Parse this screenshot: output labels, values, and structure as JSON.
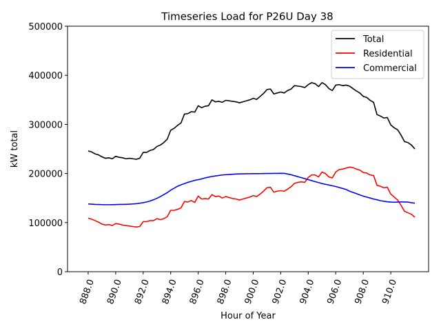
{
  "chart_data": {
    "type": "line",
    "title": "Timeseries Load for P26U   Day 38",
    "xlabel": "Hour of Year",
    "ylabel": "kW total",
    "xlim": [
      886.5,
      912.75
    ],
    "ylim": [
      0,
      500000
    ],
    "x_ticks": [
      888,
      890,
      892,
      894,
      896,
      898,
      900,
      902,
      904,
      906,
      908,
      910
    ],
    "x_tick_labels": [
      "888.0",
      "890.0",
      "892.0",
      "894.0",
      "896.0",
      "898.0",
      "900.0",
      "902.0",
      "904.0",
      "906.0",
      "908.0",
      "910.0"
    ],
    "y_ticks": [
      0,
      100000,
      200000,
      300000,
      400000,
      500000
    ],
    "y_tick_labels": [
      "0",
      "100000",
      "200000",
      "300000",
      "400000",
      "500000"
    ],
    "legend_position": "top-right",
    "x_start": 888,
    "x_step": 0.25,
    "series": [
      {
        "name": "Total",
        "color": "#000000",
        "values": [
          246000,
          244000,
          240000,
          238000,
          234000,
          231000,
          232000,
          230000,
          235000,
          233000,
          232000,
          230000,
          231000,
          230000,
          229000,
          231000,
          243000,
          243000,
          247000,
          249000,
          255000,
          258000,
          263000,
          270000,
          288000,
          292000,
          298000,
          303000,
          321000,
          322000,
          326000,
          325000,
          338000,
          334000,
          337000,
          338000,
          350000,
          346000,
          347000,
          345000,
          349000,
          348000,
          347000,
          346000,
          344000,
          346000,
          348000,
          350000,
          353000,
          351000,
          357000,
          363000,
          371000,
          372000,
          362000,
          364000,
          366000,
          364000,
          369000,
          372000,
          379000,
          378000,
          377000,
          375000,
          381000,
          385000,
          383000,
          377000,
          385000,
          381000,
          373000,
          369000,
          380000,
          381000,
          379000,
          380000,
          378000,
          373000,
          368000,
          364000,
          357000,
          355000,
          349000,
          345000,
          320000,
          317000,
          313000,
          314000,
          299000,
          293000,
          289000,
          278000,
          265000,
          263000,
          258000,
          250000
        ]
      },
      {
        "name": "Residential",
        "color": "#ff0000",
        "values": [
          109000,
          107000,
          104000,
          101000,
          97000,
          95000,
          96000,
          94000,
          98000,
          97000,
          95000,
          94000,
          93000,
          92000,
          91000,
          92000,
          102000,
          102000,
          104000,
          104000,
          108000,
          106000,
          108000,
          112000,
          125000,
          125000,
          127000,
          130000,
          143000,
          142000,
          145000,
          141000,
          154000,
          148000,
          149000,
          148000,
          157000,
          153000,
          154000,
          150000,
          153000,
          151000,
          149000,
          148000,
          146000,
          148000,
          150000,
          152000,
          155000,
          153000,
          158000,
          164000,
          171000,
          172000,
          162000,
          164000,
          165000,
          164000,
          168000,
          173000,
          180000,
          182000,
          183000,
          182000,
          192000,
          197000,
          197000,
          193000,
          203000,
          200000,
          193000,
          191000,
          203000,
          208000,
          209000,
          211000,
          213000,
          212000,
          209000,
          207000,
          202000,
          201000,
          197000,
          196000,
          176000,
          174000,
          171000,
          172000,
          158000,
          152000,
          146000,
          135000,
          123000,
          120000,
          117000,
          111000
        ]
      },
      {
        "name": "Commercial",
        "color": "#0000ff",
        "values": [
          138000,
          137500,
          137000,
          136800,
          136600,
          136400,
          136400,
          136500,
          136700,
          137000,
          137000,
          137200,
          137500,
          138000,
          138500,
          139500,
          140500,
          142000,
          144000,
          146500,
          149500,
          153000,
          157000,
          161000,
          166000,
          170000,
          174000,
          177000,
          179500,
          182000,
          184000,
          186000,
          187500,
          189000,
          191000,
          192500,
          194000,
          195000,
          196000,
          197000,
          197500,
          198000,
          198500,
          199000,
          199200,
          199400,
          199500,
          199600,
          199700,
          199700,
          199800,
          199900,
          200000,
          200100,
          200200,
          200300,
          200400,
          200300,
          199000,
          197500,
          195500,
          193500,
          191500,
          189500,
          187500,
          185500,
          183500,
          181500,
          179500,
          178000,
          176500,
          175000,
          173500,
          171500,
          169500,
          167500,
          164000,
          161500,
          159000,
          156500,
          154000,
          152000,
          150000,
          148000,
          146500,
          144500,
          143500,
          142500,
          141800,
          141500,
          141800,
          142200,
          142000,
          141700,
          140500,
          139500
        ]
      }
    ]
  }
}
